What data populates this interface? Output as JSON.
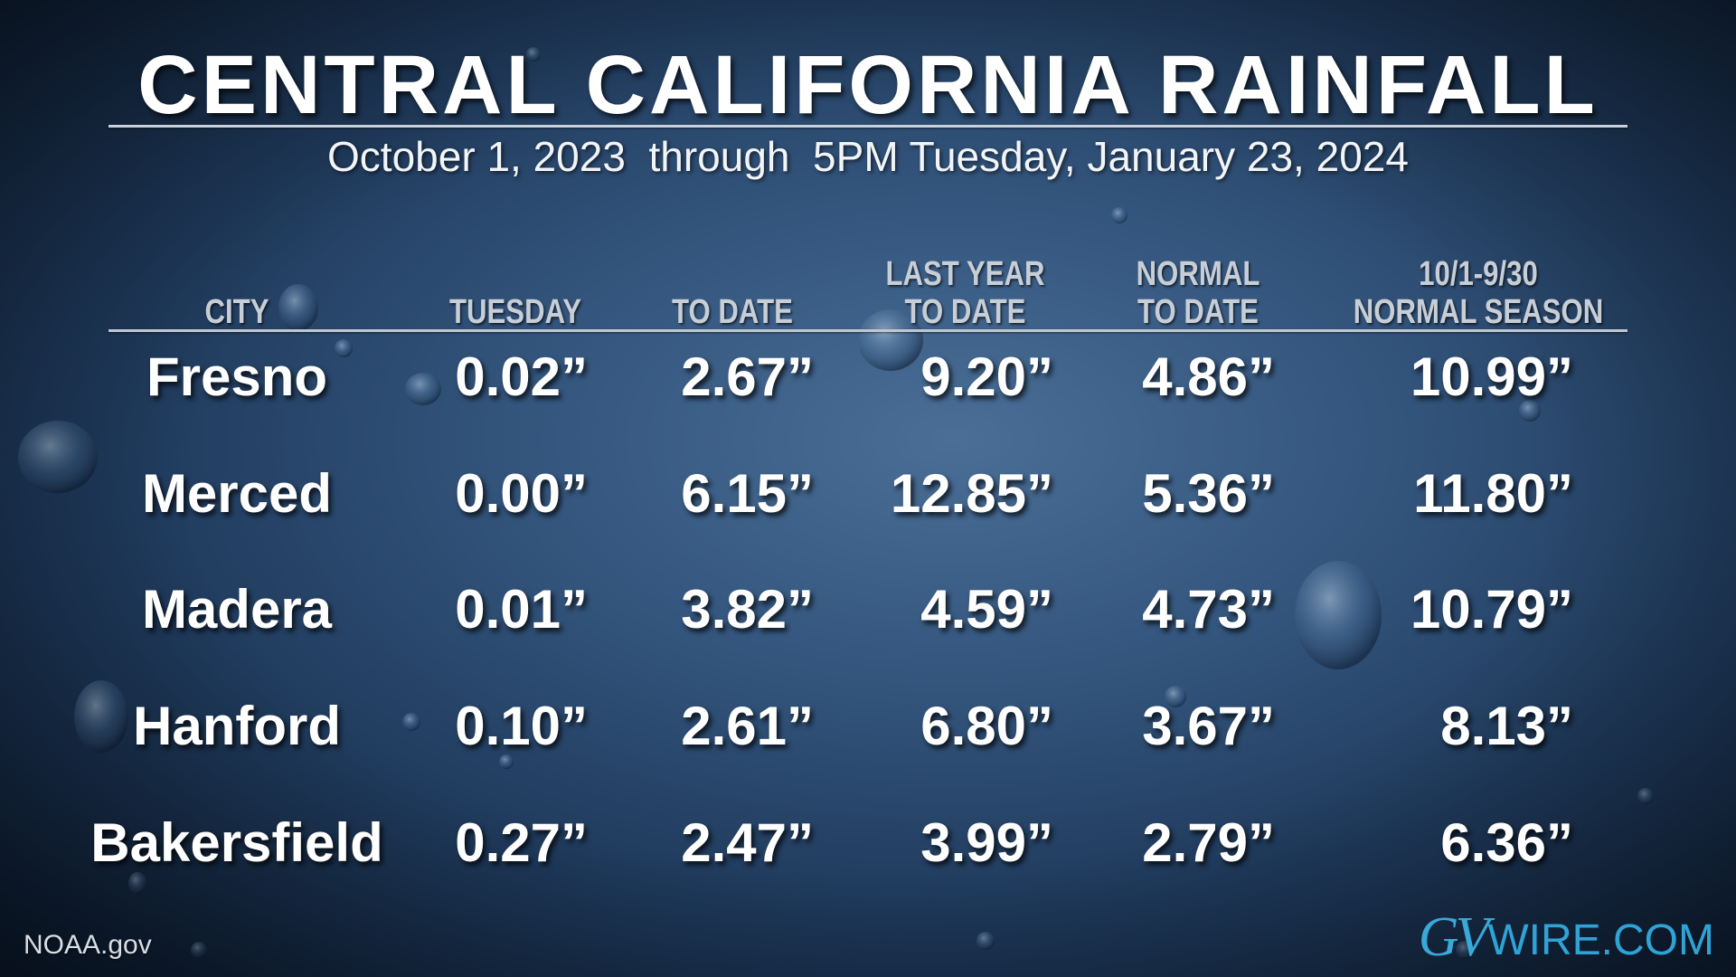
{
  "title": "CENTRAL CALIFORNIA RAINFALL",
  "subtitle": "October 1, 2023  through  5PM Tuesday, January 23, 2024",
  "columns": [
    {
      "line1": "",
      "line2": "CITY"
    },
    {
      "line1": "",
      "line2": "TUESDAY"
    },
    {
      "line1": "",
      "line2": "TO DATE"
    },
    {
      "line1": "LAST YEAR",
      "line2": "TO DATE"
    },
    {
      "line1": "NORMAL",
      "line2": "TO DATE"
    },
    {
      "line1": "10/1-9/30",
      "line2": "NORMAL SEASON"
    }
  ],
  "rows": [
    {
      "city": "Fresno",
      "tuesday": "0.02”",
      "to_date": "2.67”",
      "last_year": "9.20”",
      "normal_to_date": "4.86”",
      "normal_season": "10.99”"
    },
    {
      "city": "Merced",
      "tuesday": "0.00”",
      "to_date": "6.15”",
      "last_year": "12.85”",
      "normal_to_date": "5.36”",
      "normal_season": "11.80”"
    },
    {
      "city": "Madera",
      "tuesday": "0.01”",
      "to_date": "3.82”",
      "last_year": "4.59”",
      "normal_to_date": "4.73”",
      "normal_season": "10.79”"
    },
    {
      "city": "Hanford",
      "tuesday": "0.10”",
      "to_date": "2.61”",
      "last_year": "6.80”",
      "normal_to_date": "3.67”",
      "normal_season": "8.13”"
    },
    {
      "city": "Bakersfield",
      "tuesday": "0.27”",
      "to_date": "2.47”",
      "last_year": "3.99”",
      "normal_to_date": "2.79”",
      "normal_season": "6.36”"
    }
  ],
  "source": "NOAA.gov",
  "logo": {
    "gv": "GV",
    "wire": "WIRE.COM"
  },
  "colors": {
    "background": "#2c4c74",
    "text": "#ffffff",
    "header": "#c7ced6",
    "logo": "#2fa3d6"
  }
}
